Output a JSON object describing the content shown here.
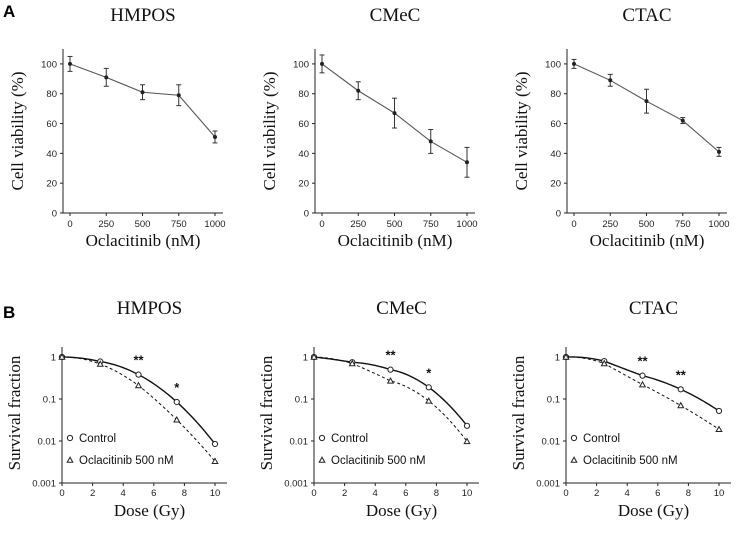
{
  "panel_labels": [
    "A",
    "B"
  ],
  "chart_data": [
    {
      "panel": "A",
      "type": "line",
      "title": "HMPOS",
      "xlabel": "Oclacitinib (nM)",
      "ylabel": "Cell viability (%)",
      "categories": [
        "0",
        "250",
        "500",
        "750",
        "1000"
      ],
      "yticks": [
        "0",
        "20",
        "40",
        "60",
        "80",
        "100"
      ],
      "ylim": [
        0,
        110
      ],
      "series": [
        {
          "name": "viability",
          "values": [
            100,
            91,
            81,
            79,
            51
          ],
          "errors": [
            5,
            6,
            5,
            7,
            4
          ]
        }
      ]
    },
    {
      "panel": "A",
      "type": "line",
      "title": "CMeC",
      "xlabel": "Oclacitinib (nM)",
      "ylabel": "Cell viability (%)",
      "categories": [
        "0",
        "250",
        "500",
        "750",
        "1000"
      ],
      "yticks": [
        "0",
        "20",
        "40",
        "60",
        "80",
        "100"
      ],
      "ylim": [
        0,
        110
      ],
      "series": [
        {
          "name": "viability",
          "values": [
            100,
            82,
            67,
            48,
            34
          ],
          "errors": [
            6,
            6,
            10,
            8,
            10
          ]
        }
      ]
    },
    {
      "panel": "A",
      "type": "line",
      "title": "CTAC",
      "xlabel": "Oclacitinib (nM)",
      "ylabel": "Cell viability (%)",
      "categories": [
        "0",
        "250",
        "500",
        "750",
        "1000"
      ],
      "yticks": [
        "0",
        "20",
        "40",
        "60",
        "80",
        "100"
      ],
      "ylim": [
        0,
        110
      ],
      "series": [
        {
          "name": "viability",
          "values": [
            100,
            89,
            75,
            62,
            41
          ],
          "errors": [
            3,
            4,
            8,
            2,
            3
          ]
        }
      ]
    },
    {
      "panel": "B",
      "type": "scatter",
      "title": "HMPOS",
      "xlabel": "Dose (Gy)",
      "ylabel": "Survival fraction",
      "yscale": "log",
      "xticks": [
        "0",
        "2",
        "4",
        "6",
        "8",
        "10"
      ],
      "yticks": [
        "0.001",
        "0.01",
        "0.1",
        "1"
      ],
      "xlim": [
        0,
        10
      ],
      "series": [
        {
          "name": "Control",
          "x": [
            0,
            2.5,
            5,
            7.5,
            10
          ],
          "y": [
            1,
            0.78,
            0.38,
            0.085,
            0.0085
          ]
        },
        {
          "name": "Oclacitinib 500 nM",
          "x": [
            0,
            2.5,
            5,
            7.5,
            10
          ],
          "y": [
            1,
            0.68,
            0.21,
            0.032,
            0.0033
          ]
        }
      ],
      "annotations": [
        {
          "text": "**",
          "x": 5
        },
        {
          "text": "*",
          "x": 7.5
        }
      ]
    },
    {
      "panel": "B",
      "type": "scatter",
      "title": "CMeC",
      "xlabel": "Dose (Gy)",
      "ylabel": "Survival fraction",
      "yscale": "log",
      "xticks": [
        "0",
        "2",
        "4",
        "6",
        "8",
        "10"
      ],
      "yticks": [
        "0.001",
        "0.01",
        "0.1",
        "1"
      ],
      "xlim": [
        0,
        10
      ],
      "series": [
        {
          "name": "Control",
          "x": [
            0,
            2.5,
            5,
            7.5,
            10
          ],
          "y": [
            1,
            0.75,
            0.5,
            0.19,
            0.023
          ]
        },
        {
          "name": "Oclacitinib 500 nM",
          "x": [
            0,
            2.5,
            5,
            7.5,
            10
          ],
          "y": [
            1,
            0.7,
            0.27,
            0.09,
            0.0098
          ]
        }
      ],
      "annotations": [
        {
          "text": "**",
          "x": 5
        },
        {
          "text": "*",
          "x": 7.5
        }
      ]
    },
    {
      "panel": "B",
      "type": "scatter",
      "title": "CTAC",
      "xlabel": "Dose (Gy)",
      "ylabel": "Survival fraction",
      "yscale": "log",
      "xticks": [
        "0",
        "2",
        "4",
        "6",
        "8",
        "10"
      ],
      "yticks": [
        "0.001",
        "0.01",
        "0.1",
        "1"
      ],
      "xlim": [
        0,
        10
      ],
      "series": [
        {
          "name": "Control",
          "x": [
            0,
            2.5,
            5,
            7.5,
            10
          ],
          "y": [
            1,
            0.8,
            0.36,
            0.17,
            0.052
          ]
        },
        {
          "name": "Oclacitinib 500 nM",
          "x": [
            0,
            2.5,
            5,
            7.5,
            10
          ],
          "y": [
            1,
            0.7,
            0.22,
            0.07,
            0.019
          ]
        }
      ],
      "annotations": [
        {
          "text": "**",
          "x": 5
        },
        {
          "text": "**",
          "x": 7.5
        }
      ]
    }
  ]
}
